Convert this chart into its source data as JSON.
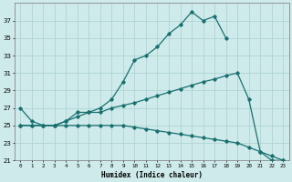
{
  "xlabel": "Humidex (Indice chaleur)",
  "bg_color": "#ceeaea",
  "grid_color": "#afd4d4",
  "line_color": "#1a7070",
  "xlim": [
    -0.5,
    23.5
  ],
  "ylim": [
    21,
    39
  ],
  "yticks": [
    21,
    23,
    25,
    27,
    29,
    31,
    33,
    35,
    37
  ],
  "xticks": [
    0,
    1,
    2,
    3,
    4,
    5,
    6,
    7,
    8,
    9,
    10,
    11,
    12,
    13,
    14,
    15,
    16,
    17,
    18,
    19,
    20,
    21,
    22,
    23
  ],
  "series": [
    {
      "x": [
        0,
        1,
        2,
        3,
        4,
        5,
        6,
        7,
        8,
        9,
        10,
        11,
        12,
        13,
        14,
        15,
        16,
        17,
        18
      ],
      "y": [
        27,
        25.5,
        25,
        25,
        25.5,
        26.5,
        26.5,
        27,
        28,
        30,
        32.5,
        33,
        34,
        35.5,
        36.5,
        38,
        37,
        37.5,
        35
      ]
    },
    {
      "x": [
        0,
        1,
        2,
        3,
        4,
        5,
        6,
        7,
        8,
        9,
        10,
        11,
        12,
        13,
        14,
        15,
        16,
        17,
        18,
        19,
        20,
        21,
        22,
        23
      ],
      "y": [
        25,
        25,
        25,
        25,
        25.5,
        26,
        26.5,
        26.5,
        27,
        27.3,
        27.6,
        28,
        28.4,
        28.8,
        29.2,
        29.6,
        30,
        30.3,
        30.7,
        31,
        28,
        22,
        21,
        21
      ]
    },
    {
      "x": [
        0,
        1,
        2,
        3,
        4,
        5,
        6,
        7,
        8,
        9,
        10,
        11,
        12,
        13,
        14,
        15,
        16,
        17,
        18,
        19,
        20,
        21,
        22,
        23
      ],
      "y": [
        25,
        25,
        25,
        25,
        25,
        25,
        25,
        25,
        25,
        25,
        24.8,
        24.6,
        24.4,
        24.2,
        24,
        23.8,
        23.6,
        23.4,
        23.2,
        23,
        22.5,
        22,
        21.5,
        21
      ]
    }
  ]
}
